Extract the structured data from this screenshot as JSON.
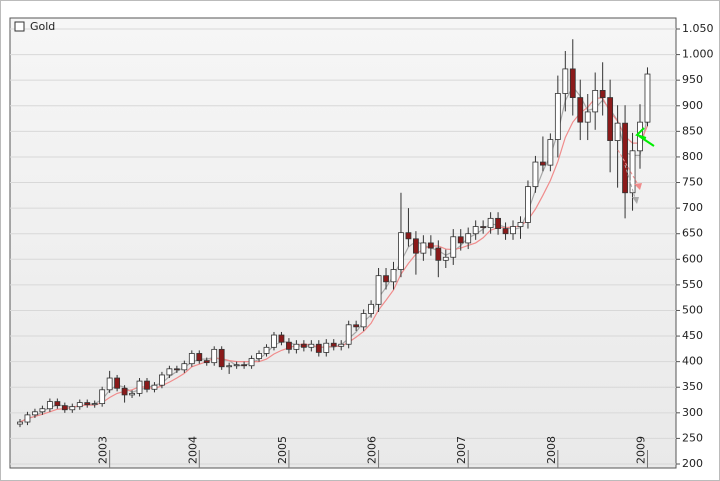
{
  "chart_data": {
    "type": "candlestick",
    "categories": [
      null,
      null,
      null,
      null,
      null,
      null,
      null,
      null,
      null,
      null,
      null,
      null,
      "2003",
      null,
      null,
      null,
      null,
      null,
      null,
      null,
      null,
      null,
      null,
      null,
      "2004",
      null,
      null,
      null,
      null,
      null,
      null,
      null,
      null,
      null,
      null,
      null,
      "2005",
      null,
      null,
      null,
      null,
      null,
      null,
      null,
      null,
      null,
      null,
      null,
      "2006",
      null,
      null,
      null,
      null,
      null,
      null,
      null,
      null,
      null,
      null,
      null,
      "2007",
      null,
      null,
      null,
      null,
      null,
      null,
      null,
      null,
      null,
      null,
      null,
      "2008",
      null,
      null,
      null,
      null,
      null,
      null,
      null,
      null,
      null,
      null,
      null,
      "2009"
    ],
    "series": [
      {
        "name": "Gold",
        "up_color": "#ffffff",
        "down_color": "#8b1a1a",
        "open": [
          278,
          282,
          296,
          302,
          308,
          322,
          314,
          306,
          312,
          320,
          316,
          318,
          345,
          368,
          348,
          335,
          338,
          362,
          346,
          354,
          374,
          386,
          384,
          396,
          416,
          402,
          398,
          424,
          390,
          392,
          394,
          392,
          406,
          416,
          428,
          452,
          438,
          424,
          434,
          428,
          434,
          418,
          436,
          430,
          434,
          472,
          468,
          494,
          512,
          568,
          556,
          580,
          652,
          640,
          612,
          632,
          622,
          598,
          604,
          644,
          632,
          650,
          664,
          662,
          680,
          660,
          650,
          664,
          672,
          742,
          790,
          784,
          834,
          924,
          972,
          916,
          868,
          888,
          930,
          916,
          832,
          866,
          730,
          812,
          868
        ],
        "high": [
          288,
          302,
          308,
          314,
          328,
          328,
          320,
          318,
          326,
          326,
          324,
          351,
          382,
          374,
          354,
          344,
          368,
          368,
          360,
          380,
          392,
          392,
          402,
          422,
          422,
          408,
          430,
          430,
          398,
          400,
          400,
          412,
          422,
          434,
          458,
          458,
          446,
          442,
          442,
          442,
          442,
          444,
          444,
          442,
          480,
          480,
          502,
          520,
          583,
          583,
          595,
          730,
          700,
          655,
          647,
          647,
          637,
          619,
          659,
          659,
          662,
          676,
          676,
          692,
          692,
          672,
          676,
          684,
          754,
          802,
          840,
          846,
          959,
          1007,
          1030,
          951,
          923,
          965,
          985,
          951,
          901,
          901,
          847,
          903,
          975
        ],
        "low": [
          272,
          276,
          290,
          296,
          302,
          308,
          300,
          300,
          306,
          310,
          310,
          312,
          339,
          342,
          320,
          329,
          332,
          340,
          340,
          348,
          368,
          378,
          378,
          390,
          396,
          392,
          392,
          384,
          376,
          386,
          386,
          386,
          400,
          410,
          422,
          432,
          416,
          416,
          420,
          420,
          410,
          410,
          422,
          422,
          426,
          460,
          460,
          486,
          497,
          541,
          541,
          565,
          625,
          570,
          597,
          607,
          565,
          583,
          589,
          617,
          620,
          638,
          650,
          650,
          648,
          638,
          638,
          640,
          660,
          730,
          772,
          772,
          799,
          889,
          881,
          833,
          833,
          853,
          881,
          770,
          740,
          680,
          695,
          777,
          860
        ],
        "close": [
          282,
          296,
          302,
          308,
          322,
          314,
          306,
          312,
          320,
          316,
          318,
          345,
          368,
          348,
          335,
          338,
          362,
          346,
          354,
          374,
          386,
          384,
          396,
          416,
          402,
          398,
          424,
          390,
          392,
          394,
          392,
          406,
          416,
          428,
          452,
          438,
          424,
          434,
          428,
          434,
          418,
          436,
          430,
          434,
          472,
          468,
          494,
          512,
          568,
          556,
          580,
          652,
          640,
          612,
          632,
          622,
          598,
          604,
          644,
          632,
          650,
          664,
          662,
          680,
          660,
          650,
          664,
          672,
          742,
          790,
          784,
          834,
          924,
          972,
          916,
          868,
          888,
          930,
          916,
          832,
          866,
          730,
          812,
          868,
          962
        ]
      }
    ],
    "overlays": [
      {
        "color": "#a8a8a8",
        "values": [
          282,
          289,
          293,
          302,
          311,
          315,
          314,
          311,
          313,
          316,
          318,
          326,
          344,
          354,
          350,
          340,
          345,
          349,
          354,
          358,
          371,
          381,
          389,
          399,
          405,
          405,
          408,
          404,
          402,
          392,
          393,
          397,
          405,
          417,
          432,
          439,
          438,
          432,
          429,
          432,
          427,
          429,
          428,
          433,
          445,
          458,
          478,
          491,
          525,
          545,
          568,
          596,
          624,
          635,
          628,
          622,
          617,
          608,
          615,
          627,
          642,
          649,
          659,
          669,
          667,
          663,
          658,
          662,
          693,
          735,
          772,
          803,
          847,
          910,
          937,
          919,
          891,
          895,
          911,
          893,
          871,
          809,
          803,
          803,
          881
        ]
      },
      {
        "color": "#f08c8c",
        "values": [
          282,
          289,
          293,
          297,
          302,
          307,
          308,
          311,
          314,
          315,
          315,
          320,
          330,
          338,
          342,
          345,
          351,
          350,
          347,
          353,
          360,
          368,
          377,
          390,
          395,
          400,
          407,
          406,
          402,
          400,
          400,
          400,
          400,
          405,
          415,
          422,
          427,
          432,
          435,
          432,
          428,
          429,
          430,
          430,
          438,
          448,
          459,
          475,
          501,
          520,
          540,
          571,
          592,
          610,
          620,
          626,
          626,
          620,
          619,
          622,
          627,
          632,
          642,
          657,
          662,
          662,
          663,
          665,
          677,
          698,
          725,
          754,
          791,
          838,
          868,
          886,
          897,
          915,
          915,
          888,
          870,
          840,
          827,
          827,
          861
        ]
      }
    ],
    "ylim": [
      200,
      1050
    ],
    "yticks": [
      200,
      250,
      300,
      350,
      400,
      450,
      500,
      550,
      600,
      650,
      700,
      750,
      800,
      850,
      900,
      950,
      {
        "value": 1000,
        "label": "1.000"
      },
      {
        "value": 1050,
        "label": "1.050"
      }
    ],
    "grid": true,
    "legend": "top-left"
  }
}
